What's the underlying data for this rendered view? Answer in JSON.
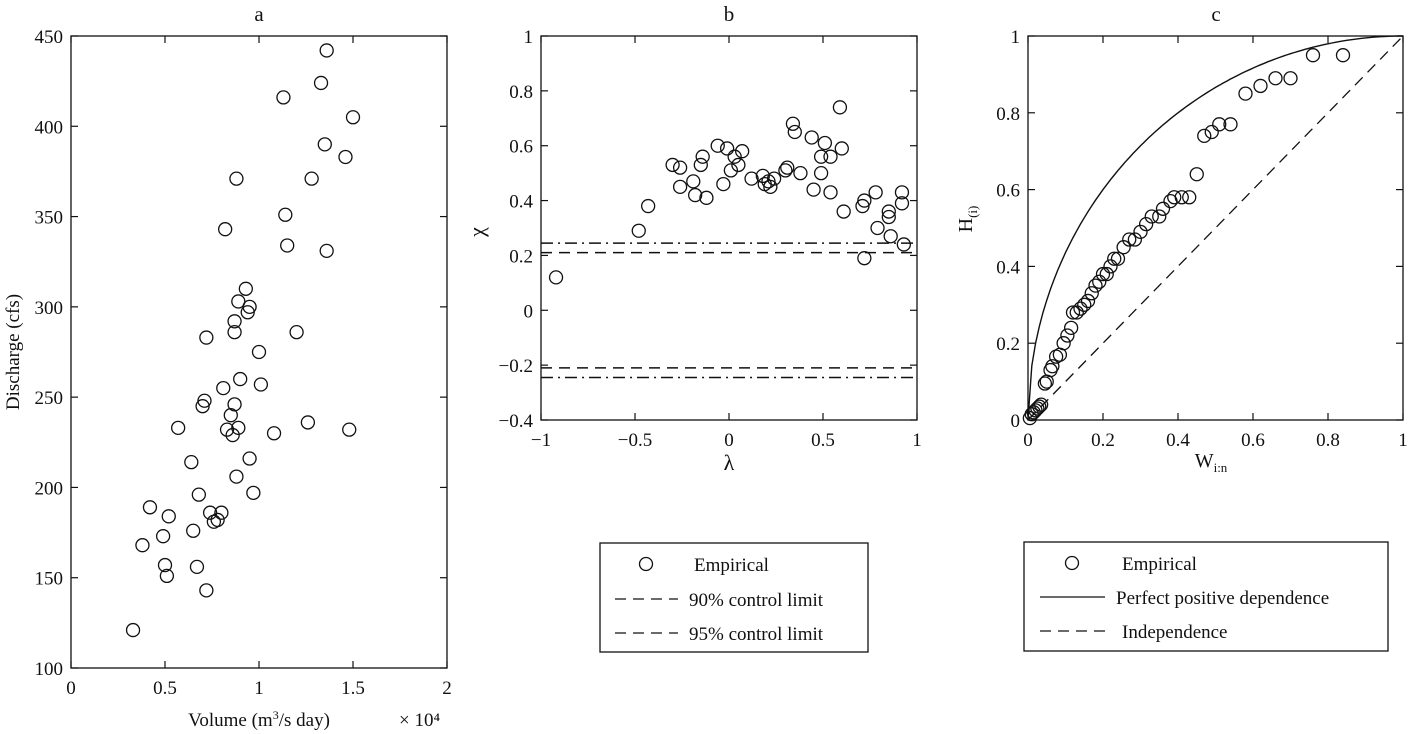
{
  "chart_data": [
    {
      "id": "a",
      "type": "scatter",
      "title": "a",
      "xlabel": "Volume (m³/s day)",
      "ylabel": "Discharge (cfs)",
      "x_multiplier": "× 10⁴",
      "xlim": [
        0,
        2
      ],
      "ylim": [
        100,
        450
      ],
      "xticks": [
        "0",
        "0.5",
        "1",
        "1.5",
        "2"
      ],
      "yticks": [
        "100",
        "150",
        "200",
        "250",
        "300",
        "350",
        "400",
        "450"
      ],
      "points": [
        [
          0.33,
          121
        ],
        [
          0.38,
          168
        ],
        [
          0.42,
          189
        ],
        [
          0.49,
          173
        ],
        [
          0.5,
          157
        ],
        [
          0.51,
          151
        ],
        [
          0.52,
          184
        ],
        [
          0.57,
          233
        ],
        [
          0.64,
          214
        ],
        [
          0.65,
          176
        ],
        [
          0.67,
          156
        ],
        [
          0.68,
          196
        ],
        [
          0.7,
          245
        ],
        [
          0.71,
          248
        ],
        [
          0.72,
          283
        ],
        [
          0.72,
          143
        ],
        [
          0.74,
          186
        ],
        [
          0.76,
          181
        ],
        [
          0.78,
          182
        ],
        [
          0.8,
          186
        ],
        [
          0.81,
          255
        ],
        [
          0.82,
          343
        ],
        [
          0.83,
          232
        ],
        [
          0.85,
          240
        ],
        [
          0.86,
          229
        ],
        [
          0.87,
          246
        ],
        [
          0.87,
          292
        ],
        [
          0.87,
          286
        ],
        [
          0.88,
          206
        ],
        [
          0.88,
          371
        ],
        [
          0.89,
          233
        ],
        [
          0.89,
          303
        ],
        [
          0.9,
          260
        ],
        [
          0.93,
          310
        ],
        [
          0.94,
          297
        ],
        [
          0.95,
          300
        ],
        [
          0.95,
          216
        ],
        [
          0.97,
          197
        ],
        [
          1.0,
          275
        ],
        [
          1.01,
          257
        ],
        [
          1.08,
          230
        ],
        [
          1.13,
          416
        ],
        [
          1.14,
          351
        ],
        [
          1.15,
          334
        ],
        [
          1.2,
          286
        ],
        [
          1.26,
          236
        ],
        [
          1.28,
          371
        ],
        [
          1.33,
          424
        ],
        [
          1.35,
          390
        ],
        [
          1.36,
          442
        ],
        [
          1.36,
          331
        ],
        [
          1.46,
          383
        ],
        [
          1.48,
          232
        ],
        [
          1.5,
          405
        ]
      ]
    },
    {
      "id": "b",
      "type": "scatter",
      "title": "b",
      "xlabel": "λ",
      "ylabel": "χ",
      "xlim": [
        -1,
        1
      ],
      "ylim": [
        -0.4,
        1
      ],
      "xticks": [
        "−1",
        "−0.5",
        "0",
        "0.5",
        "1"
      ],
      "yticks": [
        "−0.4",
        "−0.2",
        "0",
        "0.2",
        "0.4",
        "0.6",
        "0.8",
        "1"
      ],
      "control_limits": {
        "dashed": [
          0.21,
          -0.21
        ],
        "dashdot": [
          0.245,
          -0.245
        ]
      },
      "points": [
        [
          -0.92,
          0.12
        ],
        [
          -0.48,
          0.29
        ],
        [
          -0.43,
          0.38
        ],
        [
          -0.3,
          0.53
        ],
        [
          -0.26,
          0.45
        ],
        [
          -0.26,
          0.52
        ],
        [
          -0.19,
          0.47
        ],
        [
          -0.18,
          0.42
        ],
        [
          -0.15,
          0.53
        ],
        [
          -0.14,
          0.56
        ],
        [
          -0.12,
          0.41
        ],
        [
          -0.06,
          0.6
        ],
        [
          -0.03,
          0.46
        ],
        [
          -0.01,
          0.59
        ],
        [
          0.01,
          0.51
        ],
        [
          0.03,
          0.56
        ],
        [
          0.05,
          0.53
        ],
        [
          0.07,
          0.58
        ],
        [
          0.12,
          0.48
        ],
        [
          0.18,
          0.49
        ],
        [
          0.19,
          0.46
        ],
        [
          0.21,
          0.47
        ],
        [
          0.22,
          0.45
        ],
        [
          0.24,
          0.48
        ],
        [
          0.3,
          0.51
        ],
        [
          0.31,
          0.52
        ],
        [
          0.34,
          0.68
        ],
        [
          0.35,
          0.65
        ],
        [
          0.38,
          0.5
        ],
        [
          0.44,
          0.63
        ],
        [
          0.45,
          0.44
        ],
        [
          0.49,
          0.56
        ],
        [
          0.49,
          0.5
        ],
        [
          0.51,
          0.61
        ],
        [
          0.54,
          0.43
        ],
        [
          0.54,
          0.56
        ],
        [
          0.59,
          0.74
        ],
        [
          0.6,
          0.59
        ],
        [
          0.61,
          0.36
        ],
        [
          0.71,
          0.38
        ],
        [
          0.72,
          0.4
        ],
        [
          0.72,
          0.19
        ],
        [
          0.78,
          0.43
        ],
        [
          0.79,
          0.3
        ],
        [
          0.85,
          0.36
        ],
        [
          0.85,
          0.34
        ],
        [
          0.86,
          0.27
        ],
        [
          0.92,
          0.43
        ],
        [
          0.92,
          0.39
        ],
        [
          0.93,
          0.24
        ]
      ],
      "legend": {
        "entries": [
          {
            "label": "Empirical",
            "marker": "circle"
          },
          {
            "label": "90% control limit",
            "style": "dashed"
          },
          {
            "label": "95% control limit",
            "style": "dashed"
          }
        ]
      }
    },
    {
      "id": "c",
      "type": "scatter",
      "title": "c",
      "xlabel": "W",
      "xlabel_sub": "i:n",
      "ylabel": "H",
      "ylabel_sub": "(i)",
      "xlim": [
        0,
        1
      ],
      "ylim": [
        0,
        1
      ],
      "xticks": [
        "0",
        "0.2",
        "0.4",
        "0.6",
        "0.8",
        "1"
      ],
      "yticks": [
        "0",
        "0.2",
        "0.4",
        "0.6",
        "0.8",
        "1"
      ],
      "points": [
        [
          0.005,
          0.005
        ],
        [
          0.01,
          0.015
        ],
        [
          0.015,
          0.02
        ],
        [
          0.02,
          0.025
        ],
        [
          0.025,
          0.03
        ],
        [
          0.03,
          0.035
        ],
        [
          0.035,
          0.04
        ],
        [
          0.045,
          0.095
        ],
        [
          0.05,
          0.1
        ],
        [
          0.06,
          0.13
        ],
        [
          0.065,
          0.14
        ],
        [
          0.075,
          0.165
        ],
        [
          0.085,
          0.17
        ],
        [
          0.095,
          0.2
        ],
        [
          0.105,
          0.22
        ],
        [
          0.115,
          0.24
        ],
        [
          0.12,
          0.28
        ],
        [
          0.13,
          0.28
        ],
        [
          0.14,
          0.29
        ],
        [
          0.15,
          0.3
        ],
        [
          0.16,
          0.31
        ],
        [
          0.17,
          0.33
        ],
        [
          0.18,
          0.35
        ],
        [
          0.19,
          0.36
        ],
        [
          0.2,
          0.38
        ],
        [
          0.21,
          0.38
        ],
        [
          0.22,
          0.4
        ],
        [
          0.23,
          0.42
        ],
        [
          0.24,
          0.42
        ],
        [
          0.255,
          0.45
        ],
        [
          0.27,
          0.47
        ],
        [
          0.285,
          0.47
        ],
        [
          0.3,
          0.49
        ],
        [
          0.315,
          0.51
        ],
        [
          0.33,
          0.53
        ],
        [
          0.35,
          0.53
        ],
        [
          0.36,
          0.55
        ],
        [
          0.38,
          0.57
        ],
        [
          0.39,
          0.58
        ],
        [
          0.41,
          0.58
        ],
        [
          0.43,
          0.58
        ],
        [
          0.45,
          0.64
        ],
        [
          0.47,
          0.74
        ],
        [
          0.49,
          0.75
        ],
        [
          0.51,
          0.77
        ],
        [
          0.54,
          0.77
        ],
        [
          0.58,
          0.85
        ],
        [
          0.62,
          0.87
        ],
        [
          0.66,
          0.89
        ],
        [
          0.7,
          0.89
        ],
        [
          0.76,
          0.95
        ],
        [
          0.84,
          0.95
        ]
      ],
      "legend": {
        "entries": [
          {
            "label": "Empirical",
            "marker": "circle"
          },
          {
            "label": "Perfect positive dependence",
            "style": "solid"
          },
          {
            "label": "Independence",
            "style": "dashed"
          }
        ]
      }
    }
  ]
}
